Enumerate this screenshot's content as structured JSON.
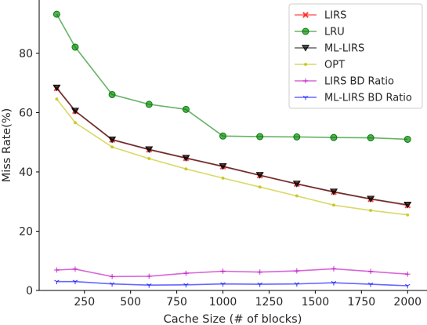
{
  "chart_data": {
    "type": "line",
    "xlabel": "Cache Size (# of blocks)",
    "ylabel": "Miss Rate(%)",
    "xlim": [
      5,
      2105
    ],
    "ylim": [
      0,
      98
    ],
    "xticks": [
      "250",
      "500",
      "750",
      "1000",
      "1250",
      "1500",
      "1750",
      "2000"
    ],
    "xtick_values": [
      250,
      500,
      750,
      1000,
      1250,
      1500,
      1750,
      2000
    ],
    "yticks": [
      "0",
      "20",
      "40",
      "60",
      "80"
    ],
    "ytick_values": [
      0,
      20,
      40,
      60,
      80
    ],
    "grid": false,
    "legend_position": "top-right",
    "x": [
      100,
      200,
      400,
      600,
      800,
      1000,
      1200,
      1400,
      1600,
      1800,
      2000
    ],
    "series": [
      {
        "name": "LIRS",
        "color": "#ff0000",
        "marker": "x",
        "values": [
          68.2,
          60.5,
          50.8,
          47.5,
          44.6,
          41.8,
          38.8,
          35.9,
          33.2,
          30.8,
          28.7
        ]
      },
      {
        "name": "LRU",
        "color": "#008000",
        "marker": "circle",
        "values": [
          93.2,
          82.1,
          66.1,
          62.8,
          61.1,
          52.1,
          51.9,
          51.8,
          51.6,
          51.5,
          51.0
        ]
      },
      {
        "name": "ML-LIRS",
        "color": "#000000",
        "marker": "triangle-down",
        "values": [
          68.4,
          60.6,
          50.9,
          47.6,
          44.7,
          41.9,
          38.9,
          36.0,
          33.3,
          30.9,
          28.9
        ]
      },
      {
        "name": "OPT",
        "color": "#bfbf00",
        "marker": "dot",
        "values": [
          64.6,
          56.6,
          48.4,
          44.5,
          41.0,
          37.9,
          34.9,
          31.9,
          28.8,
          27.0,
          25.5
        ]
      },
      {
        "name": "LIRS BD Ratio",
        "color": "#bf00bf",
        "marker": "plus",
        "values": [
          6.9,
          7.2,
          4.7,
          4.8,
          5.8,
          6.5,
          6.2,
          6.6,
          7.3,
          6.4,
          5.5
        ]
      },
      {
        "name": "ML-LIRS BD Ratio",
        "color": "#0000ff",
        "marker": "tri-down",
        "values": [
          3.0,
          3.0,
          2.2,
          1.8,
          1.9,
          2.2,
          2.1,
          2.2,
          2.6,
          2.1,
          1.6
        ]
      }
    ]
  }
}
